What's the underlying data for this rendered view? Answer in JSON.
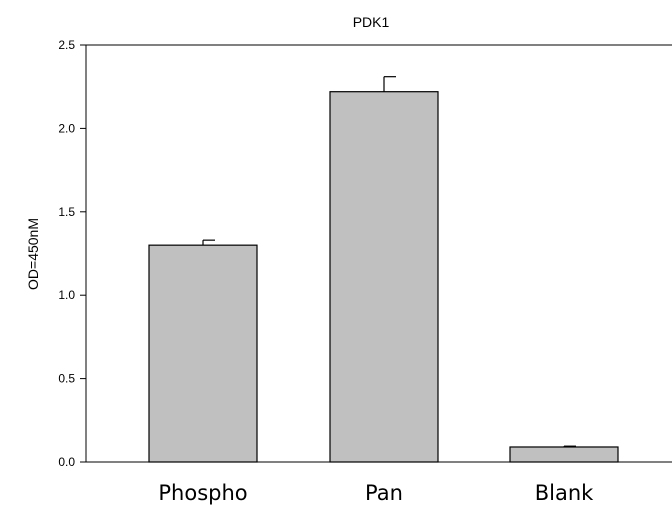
{
  "chart_data": {
    "type": "bar",
    "title": "PDK1",
    "xlabel": "",
    "ylabel": "OD=450nM",
    "categories": [
      "Phospho",
      "Pan",
      "Blank"
    ],
    "values": [
      1.3,
      2.22,
      0.09
    ],
    "errors": [
      0.03,
      0.09,
      0.005
    ],
    "ylim": [
      0,
      2.5
    ],
    "yticks": [
      "0.0",
      "0.5",
      "1.0",
      "1.5",
      "2.0",
      "2.5"
    ],
    "grid": false,
    "bar_color": "#c0c0c0",
    "edge_color": "#000000"
  }
}
